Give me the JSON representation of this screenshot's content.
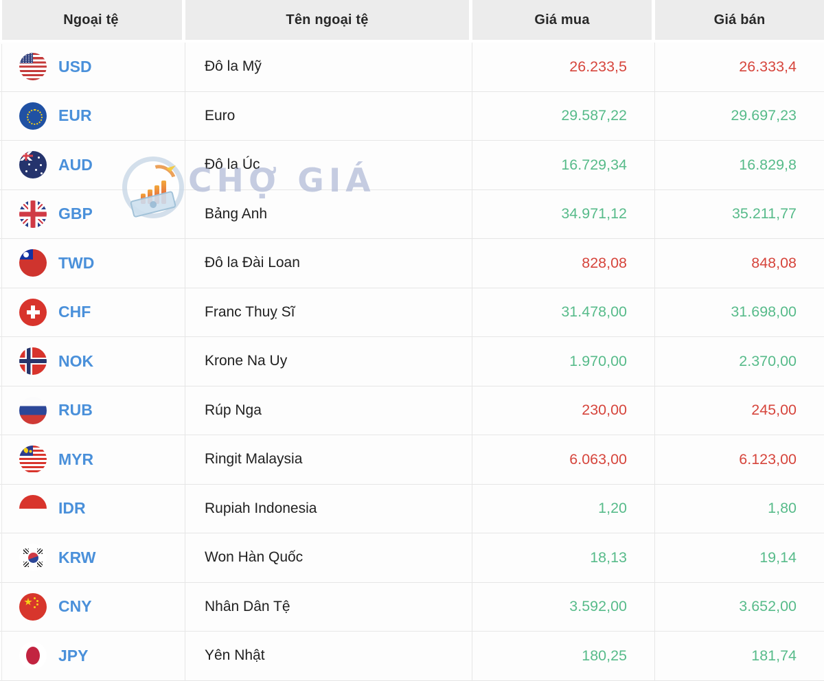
{
  "header": {
    "col1": "Ngoại tệ",
    "col2": "Tên ngoại tệ",
    "col3": "Giá mua",
    "col4": "Giá bán"
  },
  "watermark": {
    "text": "CHỢ GIÁ",
    "logo": "cho-gia-logo-icon"
  },
  "colors": {
    "positive": "#57bb8a",
    "negative": "#d6453c",
    "code_link": "#4a90da",
    "header_bg": "#ececec"
  },
  "rows": [
    {
      "flag": "usd",
      "code": "USD",
      "name": "Đô la Mỹ",
      "buy": "26.233,5",
      "sell": "26.333,4",
      "color": "negative"
    },
    {
      "flag": "eur",
      "code": "EUR",
      "name": "Euro",
      "buy": "29.587,22",
      "sell": "29.697,23",
      "color": "positive"
    },
    {
      "flag": "aud",
      "code": "AUD",
      "name": "Đô la Úc",
      "buy": "16.729,34",
      "sell": "16.829,8",
      "color": "positive"
    },
    {
      "flag": "gbp",
      "code": "GBP",
      "name": "Bảng Anh",
      "buy": "34.971,12",
      "sell": "35.211,77",
      "color": "positive"
    },
    {
      "flag": "twd",
      "code": "TWD",
      "name": "Đô la Đài Loan",
      "buy": "828,08",
      "sell": "848,08",
      "color": "negative"
    },
    {
      "flag": "chf",
      "code": "CHF",
      "name": "Franc Thuỵ Sĩ",
      "buy": "31.478,00",
      "sell": "31.698,00",
      "color": "positive"
    },
    {
      "flag": "nok",
      "code": "NOK",
      "name": "Krone Na Uy",
      "buy": "1.970,00",
      "sell": "2.370,00",
      "color": "positive"
    },
    {
      "flag": "rub",
      "code": "RUB",
      "name": "Rúp Nga",
      "buy": "230,00",
      "sell": "245,00",
      "color": "negative"
    },
    {
      "flag": "myr",
      "code": "MYR",
      "name": "Ringit Malaysia",
      "buy": "6.063,00",
      "sell": "6.123,00",
      "color": "negative"
    },
    {
      "flag": "idr",
      "code": "IDR",
      "name": "Rupiah Indonesia",
      "buy": "1,20",
      "sell": "1,80",
      "color": "positive"
    },
    {
      "flag": "krw",
      "code": "KRW",
      "name": "Won Hàn Quốc",
      "buy": "18,13",
      "sell": "19,14",
      "color": "positive"
    },
    {
      "flag": "cny",
      "code": "CNY",
      "name": "Nhân Dân Tệ",
      "buy": "3.592,00",
      "sell": "3.652,00",
      "color": "positive"
    },
    {
      "flag": "jpy",
      "code": "JPY",
      "name": "Yên Nhật",
      "buy": "180,25",
      "sell": "181,74",
      "color": "positive"
    }
  ]
}
